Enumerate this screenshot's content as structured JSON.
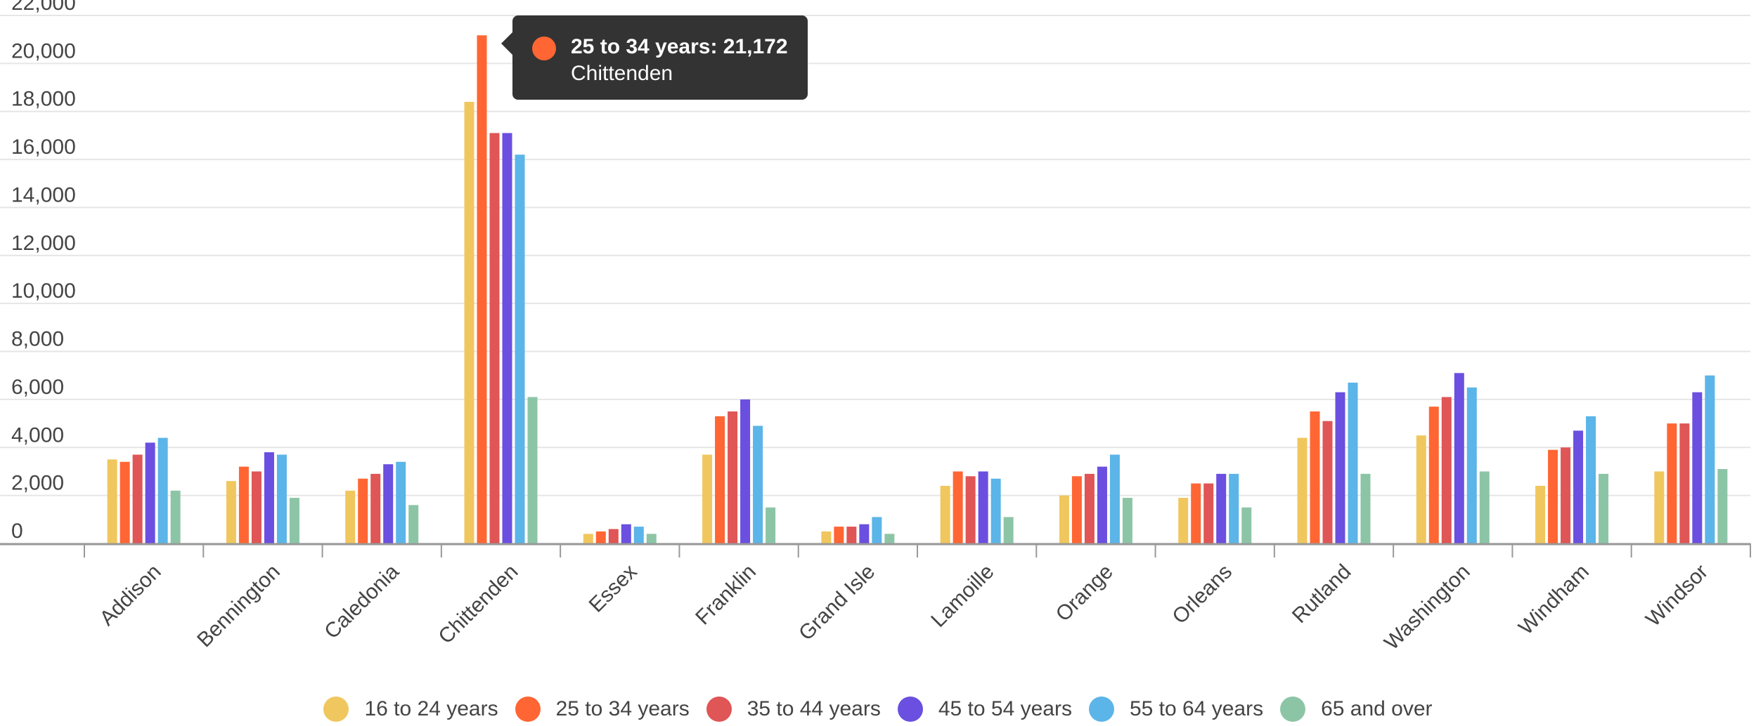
{
  "chart_data": {
    "type": "bar",
    "title": "",
    "xlabel": "",
    "ylabel": "",
    "ylim": [
      0,
      22000
    ],
    "yticks": [
      0,
      2000,
      4000,
      6000,
      8000,
      10000,
      12000,
      14000,
      16000,
      18000,
      20000,
      22000
    ],
    "ytick_labels": [
      "0",
      "2,000",
      "4,000",
      "6,000",
      "8,000",
      "10,000",
      "12,000",
      "14,000",
      "16,000",
      "18,000",
      "20,000",
      "22,000"
    ],
    "grid": true,
    "legend_position": "bottom",
    "categories": [
      "Addison",
      "Bennington",
      "Caledonia",
      "Chittenden",
      "Essex",
      "Franklin",
      "Grand Isle",
      "Lamoille",
      "Orange",
      "Orleans",
      "Rutland",
      "Washington",
      "Windham",
      "Windsor"
    ],
    "series": [
      {
        "name": "16 to 24 years",
        "color": "#F0C75E",
        "values": [
          3500,
          2600,
          2200,
          18400,
          400,
          3700,
          500,
          2400,
          2000,
          1900,
          4400,
          4500,
          2400,
          3000
        ]
      },
      {
        "name": "25 to 34 years",
        "color": "#FF6633",
        "values": [
          3400,
          3200,
          2700,
          21172,
          500,
          5300,
          700,
          3000,
          2800,
          2500,
          5500,
          5700,
          3900,
          5000
        ]
      },
      {
        "name": "35 to 44 years",
        "color": "#E05555",
        "values": [
          3700,
          3000,
          2900,
          17100,
          600,
          5500,
          700,
          2800,
          2900,
          2500,
          5100,
          6100,
          4000,
          5000
        ]
      },
      {
        "name": "45 to 54 years",
        "color": "#6A4FE0",
        "values": [
          4200,
          3800,
          3300,
          17100,
          800,
          6000,
          800,
          3000,
          3200,
          2900,
          6300,
          7100,
          4700,
          6300
        ]
      },
      {
        "name": "55 to 64 years",
        "color": "#5BB5E8",
        "values": [
          4400,
          3700,
          3400,
          16200,
          700,
          4900,
          1100,
          2700,
          3700,
          2900,
          6700,
          6500,
          5300,
          7000
        ]
      },
      {
        "name": "65 and over",
        "color": "#8CC5A6",
        "values": [
          2200,
          1900,
          1600,
          6100,
          400,
          1500,
          400,
          1100,
          1900,
          1500,
          2900,
          3000,
          2900,
          3100
        ]
      }
    ]
  },
  "tooltip": {
    "title": "25 to 34 years: 21,172",
    "subtitle": "Chittenden",
    "color": "#FF6633"
  }
}
